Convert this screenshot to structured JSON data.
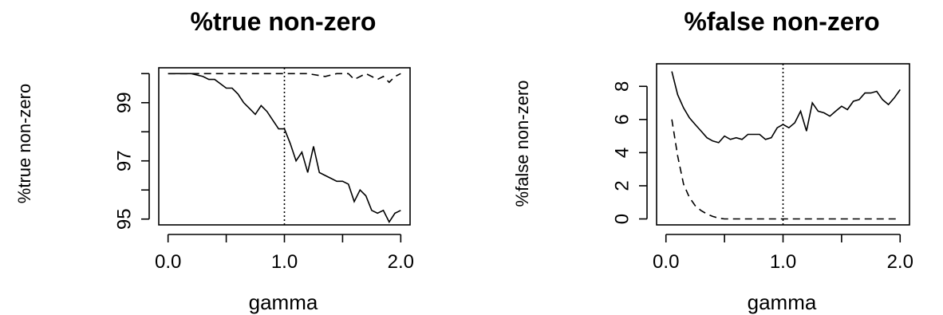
{
  "chart_data": [
    {
      "type": "line",
      "title": "%true non-zero",
      "xlabel": "gamma",
      "ylabel": "%true non-zero",
      "xlim": [
        0.0,
        2.0
      ],
      "ylim": [
        95,
        100
      ],
      "x_ticks": [
        "0.0",
        "1.0",
        "2.0"
      ],
      "y_ticks": [
        "95",
        "97",
        "99"
      ],
      "vline_x": 1.0,
      "series": [
        {
          "style": "solid",
          "x": [
            0.0,
            0.1,
            0.2,
            0.3,
            0.35,
            0.4,
            0.5,
            0.55,
            0.6,
            0.65,
            0.7,
            0.75,
            0.8,
            0.85,
            0.9,
            0.95,
            1.0,
            1.05,
            1.1,
            1.15,
            1.2,
            1.25,
            1.3,
            1.35,
            1.4,
            1.45,
            1.5,
            1.55,
            1.6,
            1.65,
            1.7,
            1.75,
            1.8,
            1.85,
            1.9,
            1.95,
            2.0
          ],
          "values": [
            100.0,
            100.0,
            100.0,
            99.9,
            99.8,
            99.8,
            99.5,
            99.5,
            99.3,
            99.0,
            98.8,
            98.6,
            98.9,
            98.7,
            98.4,
            98.1,
            98.1,
            97.6,
            97.0,
            97.3,
            96.6,
            97.5,
            96.6,
            96.5,
            96.4,
            96.3,
            96.3,
            96.2,
            95.6,
            96.0,
            95.8,
            95.3,
            95.2,
            95.3,
            94.9,
            95.2,
            95.3
          ]
        },
        {
          "style": "dashed",
          "x": [
            0.0,
            0.2,
            0.4,
            0.6,
            0.8,
            1.0,
            1.2,
            1.35,
            1.45,
            1.55,
            1.6,
            1.7,
            1.75,
            1.8,
            1.85,
            1.9,
            1.95,
            2.0
          ],
          "values": [
            100.0,
            100.0,
            100.0,
            100.0,
            100.0,
            100.0,
            100.0,
            99.9,
            100.0,
            100.0,
            99.8,
            100.0,
            99.9,
            99.8,
            99.9,
            99.7,
            99.9,
            100.0
          ]
        }
      ]
    },
    {
      "type": "line",
      "title": "%false non-zero",
      "xlabel": "gamma",
      "ylabel": "%false non-zero",
      "xlim": [
        0.0,
        2.0
      ],
      "ylim": [
        0,
        9
      ],
      "x_ticks": [
        "0.0",
        "1.0",
        "2.0"
      ],
      "y_ticks": [
        "0",
        "2",
        "4",
        "6",
        "8"
      ],
      "vline_x": 1.0,
      "series": [
        {
          "style": "solid",
          "x": [
            0.05,
            0.1,
            0.15,
            0.2,
            0.25,
            0.3,
            0.35,
            0.4,
            0.45,
            0.5,
            0.55,
            0.6,
            0.65,
            0.7,
            0.75,
            0.8,
            0.85,
            0.9,
            0.95,
            1.0,
            1.05,
            1.1,
            1.15,
            1.2,
            1.25,
            1.3,
            1.35,
            1.4,
            1.45,
            1.5,
            1.55,
            1.6,
            1.65,
            1.7,
            1.75,
            1.8,
            1.85,
            1.9,
            1.95,
            2.0
          ],
          "values": [
            8.9,
            7.5,
            6.7,
            6.1,
            5.7,
            5.3,
            4.9,
            4.7,
            4.6,
            5.0,
            4.8,
            4.9,
            4.8,
            5.1,
            5.1,
            5.1,
            4.8,
            4.9,
            5.5,
            5.7,
            5.5,
            5.8,
            6.5,
            5.3,
            7.0,
            6.5,
            6.4,
            6.2,
            6.5,
            6.8,
            6.6,
            7.1,
            7.2,
            7.6,
            7.6,
            7.7,
            7.2,
            6.9,
            7.3,
            7.8
          ]
        },
        {
          "style": "dashed",
          "x": [
            0.05,
            0.1,
            0.15,
            0.2,
            0.25,
            0.3,
            0.35,
            0.4,
            0.45,
            0.5,
            0.6,
            0.8,
            1.0,
            1.2,
            1.4,
            1.6,
            1.8,
            2.0
          ],
          "values": [
            6.0,
            3.8,
            2.1,
            1.3,
            0.8,
            0.5,
            0.3,
            0.15,
            0.05,
            0.0,
            0.0,
            0.0,
            0.0,
            0.0,
            0.0,
            0.0,
            0.0,
            0.0
          ]
        }
      ]
    }
  ]
}
